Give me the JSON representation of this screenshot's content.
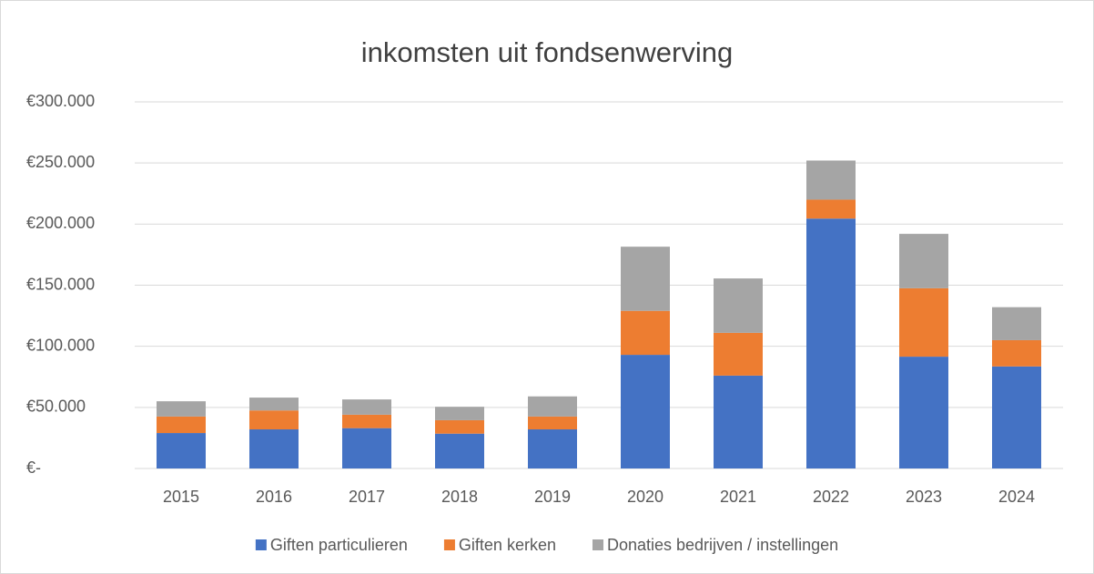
{
  "chart_data": {
    "type": "stacked_bar",
    "title": "inkomsten uit fondsenwerving",
    "categories": [
      "2015",
      "2016",
      "2017",
      "2018",
      "2019",
      "2020",
      "2021",
      "2022",
      "2023",
      "2024"
    ],
    "series": [
      {
        "name": "Giften particulieren",
        "color": "#4472c4",
        "values": [
          29000,
          32000,
          33000,
          28500,
          32000,
          93000,
          76000,
          204500,
          91500,
          83500
        ]
      },
      {
        "name": "Giften kerken",
        "color": "#ed7d31",
        "values": [
          13500,
          15500,
          11000,
          11000,
          10500,
          36000,
          35000,
          15500,
          56000,
          21500
        ]
      },
      {
        "name": "Donaties bedrijven / instellingen",
        "color": "#a5a5a5",
        "values": [
          12500,
          10500,
          12500,
          11000,
          16500,
          52500,
          44500,
          32000,
          44500,
          27000
        ]
      }
    ],
    "ylim": [
      0,
      300000
    ],
    "yticks": [
      {
        "value": 0,
        "label": "€-"
      },
      {
        "value": 50000,
        "label": "€50.000"
      },
      {
        "value": 100000,
        "label": "€100.000"
      },
      {
        "value": 150000,
        "label": "€150.000"
      },
      {
        "value": 200000,
        "label": "€200.000"
      },
      {
        "value": 250000,
        "label": "€250.000"
      },
      {
        "value": 300000,
        "label": "€300.000"
      }
    ],
    "grid": true,
    "legend": "bottom"
  }
}
